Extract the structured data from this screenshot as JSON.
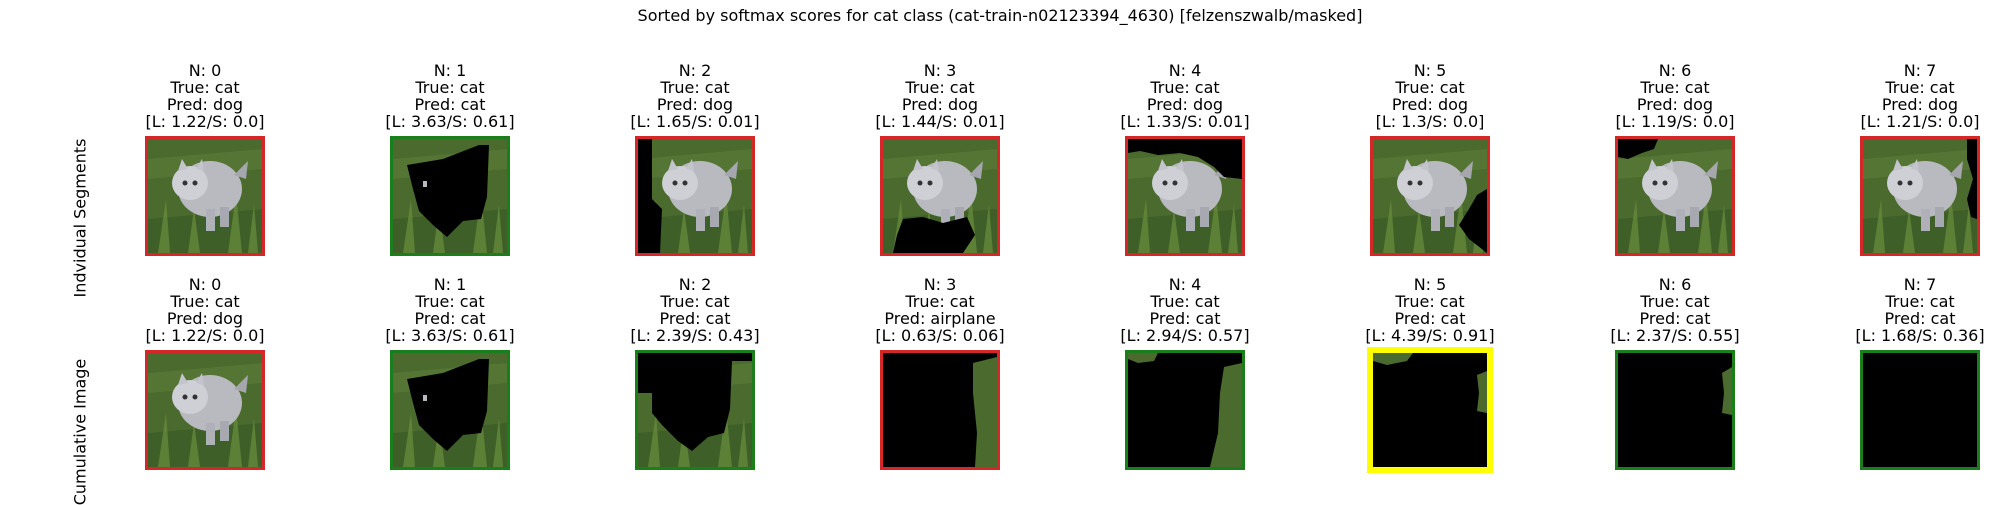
{
  "title": "Sorted by softmax scores for cat class (cat-train-n02123394_4630) [felzenszwalb/masked]",
  "colors": {
    "red": "#d62728",
    "green": "#1a7f1a",
    "yellow": "#ffff00"
  },
  "rows": [
    {
      "label": "Indvidual Segments",
      "panels": [
        {
          "n": "N: 0",
          "true_label": "True: cat",
          "pred": "Pred: dog",
          "score": "[L: 1.22/S: 0.0]",
          "border": "red"
        },
        {
          "n": "N: 1",
          "true_label": "True: cat",
          "pred": "Pred: cat",
          "score": "[L: 3.63/S: 0.61]",
          "border": "green"
        },
        {
          "n": "N: 2",
          "true_label": "True: cat",
          "pred": "Pred: dog",
          "score": "[L: 1.65/S: 0.01]",
          "border": "red"
        },
        {
          "n": "N: 3",
          "true_label": "True: cat",
          "pred": "Pred: dog",
          "score": "[L: 1.44/S: 0.01]",
          "border": "red"
        },
        {
          "n": "N: 4",
          "true_label": "True: cat",
          "pred": "Pred: dog",
          "score": "[L: 1.33/S: 0.01]",
          "border": "red"
        },
        {
          "n": "N: 5",
          "true_label": "True: cat",
          "pred": "Pred: dog",
          "score": "[L: 1.3/S: 0.0]",
          "border": "red"
        },
        {
          "n": "N: 6",
          "true_label": "True: cat",
          "pred": "Pred: dog",
          "score": "[L: 1.19/S: 0.0]",
          "border": "red"
        },
        {
          "n": "N: 7",
          "true_label": "True: cat",
          "pred": "Pred: dog",
          "score": "[L: 1.21/S: 0.0]",
          "border": "red"
        }
      ]
    },
    {
      "label": "Cumulative Image",
      "panels": [
        {
          "n": "N: 0",
          "true_label": "True: cat",
          "pred": "Pred: dog",
          "score": "[L: 1.22/S: 0.0]",
          "border": "red"
        },
        {
          "n": "N: 1",
          "true_label": "True: cat",
          "pred": "Pred: cat",
          "score": "[L: 3.63/S: 0.61]",
          "border": "green"
        },
        {
          "n": "N: 2",
          "true_label": "True: cat",
          "pred": "Pred: cat",
          "score": "[L: 2.39/S: 0.43]",
          "border": "green"
        },
        {
          "n": "N: 3",
          "true_label": "True: cat",
          "pred": "Pred: airplane",
          "score": "[L: 0.63/S: 0.06]",
          "border": "red"
        },
        {
          "n": "N: 4",
          "true_label": "True: cat",
          "pred": "Pred: cat",
          "score": "[L: 2.94/S: 0.57]",
          "border": "green"
        },
        {
          "n": "N: 5",
          "true_label": "True: cat",
          "pred": "Pred: cat",
          "score": "[L: 4.39/S: 0.91]",
          "border": "yellow"
        },
        {
          "n": "N: 6",
          "true_label": "True: cat",
          "pred": "Pred: cat",
          "score": "[L: 2.37/S: 0.55]",
          "border": "green"
        },
        {
          "n": "N: 7",
          "true_label": "True: cat",
          "pred": "Pred: cat",
          "score": "[L: 1.68/S: 0.36]",
          "border": "green"
        }
      ]
    }
  ],
  "chart_data": {
    "type": "table",
    "title": "Sorted by softmax scores for cat class (cat-train-n02123394_4630) [felzenszwalb/masked]",
    "row_labels": [
      "Indvidual Segments",
      "Cumulative Image"
    ],
    "columns": [
      "N",
      "True",
      "Pred",
      "L",
      "S"
    ],
    "rows": [
      [
        0,
        "cat",
        "dog",
        1.22,
        0.0
      ],
      [
        1,
        "cat",
        "cat",
        3.63,
        0.61
      ],
      [
        2,
        "cat",
        "dog",
        1.65,
        0.01
      ],
      [
        3,
        "cat",
        "dog",
        1.44,
        0.01
      ],
      [
        4,
        "cat",
        "dog",
        1.33,
        0.01
      ],
      [
        5,
        "cat",
        "dog",
        1.3,
        0.0
      ],
      [
        6,
        "cat",
        "dog",
        1.19,
        0.0
      ],
      [
        7,
        "cat",
        "dog",
        1.21,
        0.0
      ],
      [
        0,
        "cat",
        "dog",
        1.22,
        0.0
      ],
      [
        1,
        "cat",
        "cat",
        3.63,
        0.61
      ],
      [
        2,
        "cat",
        "cat",
        2.39,
        0.43
      ],
      [
        3,
        "cat",
        "airplane",
        0.63,
        0.06
      ],
      [
        4,
        "cat",
        "cat",
        2.94,
        0.57
      ],
      [
        5,
        "cat",
        "cat",
        4.39,
        0.91
      ],
      [
        6,
        "cat",
        "cat",
        2.37,
        0.55
      ],
      [
        7,
        "cat",
        "cat",
        1.68,
        0.36
      ]
    ]
  }
}
